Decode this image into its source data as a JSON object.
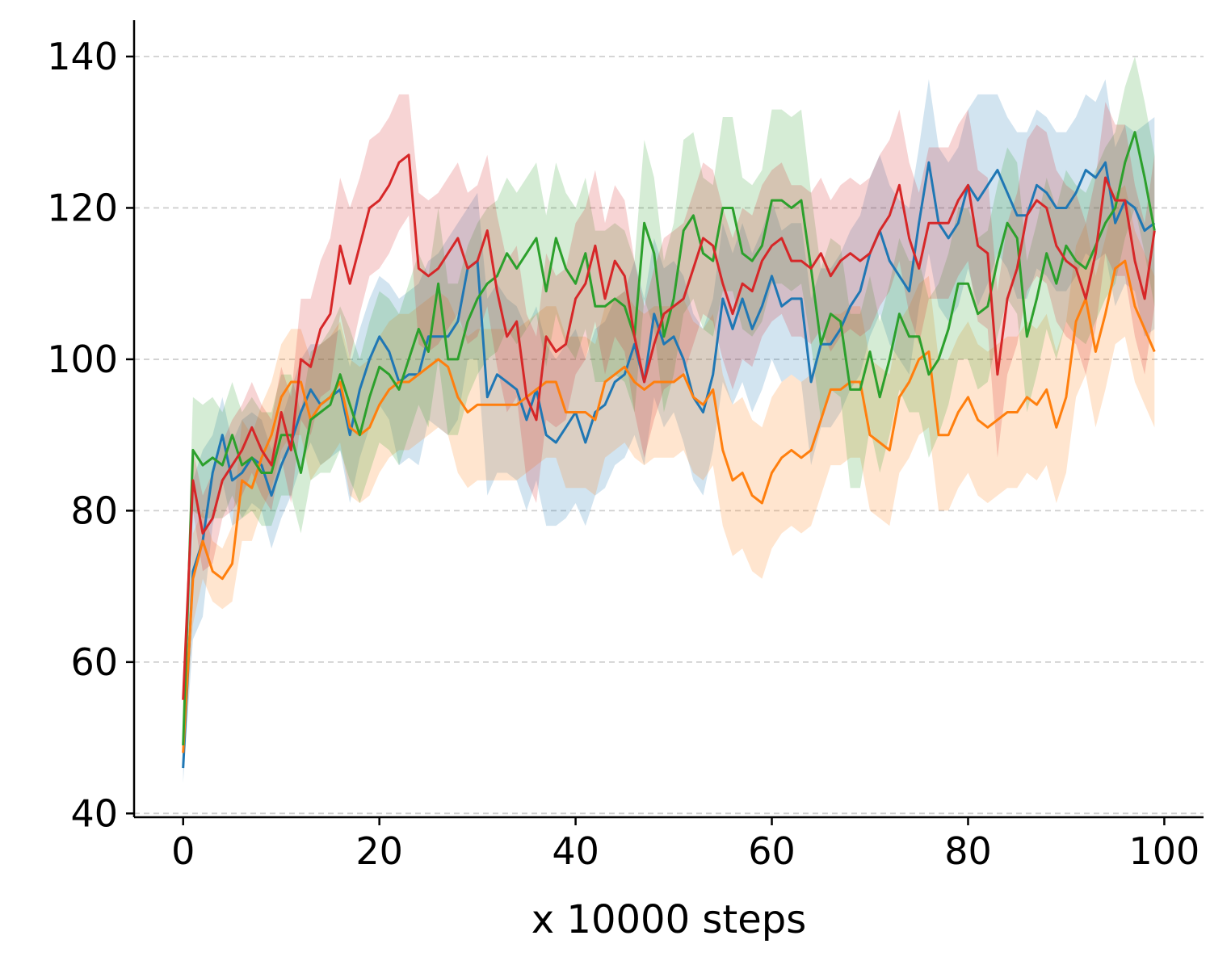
{
  "chart_data": {
    "type": "line",
    "title": "",
    "xlabel": "x 10000 steps",
    "ylabel": "",
    "xlim": [
      -5,
      104
    ],
    "ylim": [
      39.5,
      144.8
    ],
    "xticks": [
      0,
      20,
      40,
      60,
      80,
      100
    ],
    "yticks": [
      40,
      60,
      80,
      100,
      120,
      140
    ],
    "grid": "horizontal dashed",
    "legend": "none",
    "band_opacity": 0.2,
    "series": [
      {
        "color": "#1f77b4",
        "values": [
          46,
          72,
          76,
          85,
          90,
          84,
          85,
          87,
          86,
          82,
          86,
          89,
          93,
          96,
          94,
          95,
          96,
          90,
          96,
          100,
          103,
          101,
          97,
          98,
          98,
          103,
          103,
          103,
          105,
          112,
          113,
          95,
          98,
          97,
          96,
          92,
          96,
          90,
          89,
          91,
          93,
          89,
          93,
          94,
          97,
          98,
          102,
          97,
          106,
          102,
          103,
          100,
          95,
          93,
          98,
          108,
          104,
          108,
          104,
          107,
          111,
          107,
          108,
          108,
          97,
          102,
          102,
          104,
          107,
          109,
          114,
          117,
          113,
          111,
          109,
          118,
          126,
          118,
          116,
          118,
          123,
          121,
          123,
          125,
          122,
          119,
          119,
          123,
          122,
          120,
          120,
          122,
          125,
          124,
          126,
          118,
          121,
          120,
          117,
          118
        ],
        "upper": [
          48,
          84,
          88,
          90,
          95,
          89,
          92,
          93,
          92,
          88,
          92,
          96,
          100,
          102,
          102,
          103,
          104,
          99,
          104,
          108,
          111,
          110,
          108,
          109,
          110,
          113,
          114,
          116,
          118,
          120,
          122,
          108,
          110,
          108,
          107,
          104,
          107,
          102,
          100,
          102,
          104,
          100,
          104,
          105,
          108,
          109,
          113,
          108,
          116,
          112,
          113,
          111,
          106,
          104,
          108,
          118,
          114,
          118,
          114,
          117,
          121,
          117,
          118,
          118,
          108,
          112,
          112,
          114,
          117,
          119,
          124,
          127,
          123,
          121,
          120,
          128,
          137,
          128,
          126,
          128,
          133,
          135,
          135,
          135,
          132,
          130,
          130,
          133,
          132,
          130,
          130,
          132,
          135,
          134,
          137,
          128,
          131,
          130,
          131,
          132
        ],
        "lower": [
          44,
          63,
          66,
          78,
          84,
          78,
          79,
          81,
          80,
          75,
          79,
          82,
          86,
          89,
          86,
          87,
          88,
          81,
          87,
          91,
          94,
          92,
          86,
          87,
          86,
          92,
          91,
          90,
          92,
          100,
          100,
          82,
          85,
          85,
          84,
          80,
          84,
          78,
          78,
          79,
          81,
          78,
          82,
          83,
          86,
          87,
          90,
          86,
          95,
          91,
          93,
          89,
          84,
          82,
          88,
          97,
          94,
          97,
          93,
          96,
          100,
          97,
          98,
          97,
          86,
          91,
          91,
          93,
          96,
          98,
          103,
          106,
          102,
          100,
          98,
          107,
          114,
          107,
          105,
          107,
          112,
          107,
          110,
          114,
          112,
          108,
          108,
          112,
          111,
          109,
          109,
          111,
          114,
          113,
          114,
          107,
          110,
          109,
          103,
          104
        ]
      },
      {
        "color": "#ff7f0e",
        "values": [
          48,
          71,
          76,
          72,
          71,
          73,
          84,
          83,
          87,
          90,
          95,
          97,
          97,
          92,
          94,
          95,
          97,
          91,
          90,
          91,
          94,
          96,
          97,
          97,
          98,
          99,
          100,
          99,
          95,
          93,
          94,
          94,
          94,
          94,
          94,
          95,
          96,
          97,
          97,
          93,
          93,
          93,
          92,
          97,
          98,
          99,
          97,
          96,
          97,
          97,
          97,
          98,
          95,
          94,
          96,
          88,
          84,
          85,
          82,
          81,
          85,
          87,
          88,
          87,
          88,
          92,
          96,
          96,
          97,
          97,
          90,
          89,
          88,
          95,
          97,
          100,
          101,
          90,
          90,
          93,
          95,
          92,
          91,
          92,
          93,
          93,
          95,
          94,
          96,
          91,
          95,
          105,
          108,
          101,
          106,
          112,
          113,
          107,
          104,
          101
        ],
        "upper": [
          50,
          77,
          80,
          76,
          75,
          78,
          92,
          90,
          94,
          97,
          102,
          104,
          104,
          100,
          102,
          103,
          105,
          100,
          99,
          100,
          103,
          105,
          106,
          106,
          107,
          108,
          109,
          108,
          105,
          103,
          104,
          104,
          104,
          104,
          104,
          105,
          106,
          107,
          107,
          103,
          103,
          103,
          102,
          107,
          108,
          109,
          107,
          106,
          107,
          107,
          107,
          108,
          105,
          104,
          106,
          98,
          94,
          95,
          92,
          91,
          95,
          97,
          98,
          97,
          98,
          102,
          106,
          106,
          107,
          107,
          100,
          99,
          98,
          105,
          107,
          110,
          111,
          100,
          100,
          103,
          105,
          102,
          101,
          102,
          103,
          103,
          105,
          104,
          106,
          101,
          105,
          115,
          118,
          111,
          116,
          122,
          123,
          117,
          114,
          111
        ],
        "lower": [
          46,
          65,
          71,
          68,
          67,
          68,
          76,
          76,
          80,
          83,
          88,
          90,
          90,
          84,
          86,
          87,
          89,
          82,
          81,
          82,
          85,
          87,
          88,
          88,
          89,
          90,
          91,
          90,
          85,
          83,
          84,
          84,
          84,
          84,
          84,
          85,
          86,
          87,
          87,
          83,
          83,
          83,
          82,
          87,
          88,
          89,
          87,
          86,
          87,
          87,
          87,
          88,
          85,
          84,
          86,
          78,
          74,
          75,
          72,
          71,
          75,
          77,
          78,
          77,
          78,
          82,
          86,
          86,
          87,
          87,
          80,
          79,
          78,
          85,
          87,
          90,
          91,
          80,
          80,
          83,
          85,
          82,
          81,
          82,
          83,
          83,
          85,
          84,
          86,
          81,
          85,
          95,
          98,
          91,
          96,
          102,
          103,
          97,
          94,
          91
        ]
      },
      {
        "color": "#2ca02c",
        "values": [
          49,
          88,
          86,
          87,
          86,
          90,
          86,
          87,
          85,
          85,
          90,
          90,
          85,
          92,
          93,
          94,
          98,
          94,
          90,
          95,
          99,
          98,
          96,
          100,
          104,
          101,
          110,
          100,
          100,
          105,
          108,
          110,
          111,
          114,
          112,
          114,
          116,
          109,
          116,
          112,
          110,
          114,
          107,
          107,
          108,
          107,
          103,
          118,
          114,
          103,
          108,
          117,
          119,
          114,
          113,
          120,
          120,
          114,
          113,
          115,
          121,
          121,
          120,
          121,
          112,
          102,
          106,
          105,
          96,
          96,
          101,
          95,
          100,
          106,
          103,
          103,
          98,
          100,
          104,
          110,
          110,
          106,
          107,
          113,
          118,
          116,
          103,
          108,
          114,
          110,
          115,
          113,
          112,
          115,
          118,
          120,
          126,
          130,
          124,
          117
        ],
        "upper": [
          51,
          95,
          94,
          95,
          93,
          97,
          93,
          95,
          93,
          93,
          98,
          98,
          93,
          101,
          102,
          104,
          107,
          104,
          100,
          105,
          109,
          108,
          106,
          110,
          114,
          111,
          120,
          110,
          110,
          115,
          118,
          120,
          121,
          124,
          122,
          124,
          126,
          119,
          126,
          122,
          120,
          124,
          117,
          117,
          118,
          117,
          113,
          129,
          124,
          113,
          118,
          129,
          130,
          124,
          123,
          132,
          132,
          124,
          123,
          125,
          133,
          133,
          132,
          133,
          122,
          112,
          116,
          115,
          106,
          106,
          111,
          105,
          110,
          116,
          113,
          113,
          108,
          110,
          114,
          120,
          120,
          116,
          117,
          123,
          128,
          126,
          113,
          118,
          124,
          120,
          125,
          123,
          122,
          125,
          128,
          130,
          136,
          140,
          134,
          127
        ],
        "lower": [
          47,
          80,
          79,
          79,
          79,
          82,
          79,
          80,
          78,
          78,
          82,
          82,
          77,
          84,
          85,
          85,
          88,
          84,
          81,
          85,
          89,
          88,
          86,
          90,
          94,
          91,
          100,
          90,
          90,
          95,
          98,
          100,
          101,
          104,
          102,
          104,
          106,
          99,
          106,
          102,
          100,
          104,
          97,
          97,
          98,
          97,
          93,
          108,
          104,
          93,
          98,
          106,
          108,
          104,
          103,
          109,
          109,
          104,
          103,
          105,
          110,
          110,
          109,
          110,
          102,
          92,
          96,
          95,
          83,
          83,
          91,
          85,
          90,
          96,
          93,
          93,
          87,
          90,
          94,
          100,
          100,
          96,
          97,
          103,
          108,
          106,
          93,
          98,
          104,
          100,
          105,
          103,
          102,
          105,
          108,
          110,
          116,
          120,
          114,
          107
        ]
      },
      {
        "color": "#d62728",
        "values": [
          55,
          84,
          77,
          79,
          84,
          86,
          88,
          91,
          88,
          86,
          93,
          88,
          100,
          99,
          104,
          106,
          115,
          110,
          115,
          120,
          121,
          123,
          126,
          127,
          112,
          111,
          112,
          114,
          116,
          112,
          113,
          117,
          109,
          103,
          105,
          95,
          92,
          103,
          101,
          102,
          108,
          110,
          115,
          108,
          113,
          111,
          103,
          97,
          102,
          106,
          107,
          108,
          112,
          116,
          115,
          110,
          106,
          110,
          109,
          113,
          115,
          116,
          113,
          113,
          112,
          114,
          111,
          113,
          114,
          113,
          114,
          117,
          119,
          123,
          116,
          112,
          118,
          118,
          118,
          121,
          123,
          115,
          114,
          98,
          108,
          112,
          119,
          121,
          120,
          115,
          113,
          112,
          108,
          114,
          124,
          121,
          121,
          113,
          108,
          117
        ],
        "upper": [
          57,
          88,
          82,
          85,
          89,
          92,
          94,
          97,
          94,
          92,
          99,
          95,
          108,
          108,
          113,
          116,
          124,
          120,
          124,
          129,
          130,
          132,
          135,
          135,
          122,
          121,
          122,
          124,
          126,
          122,
          123,
          127,
          119,
          113,
          115,
          106,
          103,
          114,
          111,
          112,
          118,
          120,
          125,
          118,
          123,
          121,
          113,
          107,
          112,
          116,
          117,
          118,
          122,
          126,
          125,
          120,
          116,
          120,
          119,
          123,
          125,
          126,
          123,
          123,
          122,
          124,
          121,
          123,
          124,
          123,
          124,
          127,
          129,
          133,
          126,
          122,
          128,
          128,
          128,
          131,
          133,
          125,
          124,
          109,
          118,
          122,
          129,
          131,
          130,
          125,
          123,
          122,
          118,
          124,
          134,
          131,
          131,
          123,
          118,
          127
        ],
        "lower": [
          53,
          80,
          72,
          73,
          79,
          80,
          82,
          85,
          82,
          80,
          87,
          81,
          92,
          90,
          95,
          96,
          106,
          100,
          106,
          111,
          112,
          114,
          117,
          119,
          102,
          101,
          102,
          104,
          106,
          102,
          103,
          107,
          99,
          93,
          95,
          84,
          81,
          92,
          91,
          92,
          98,
          100,
          105,
          98,
          103,
          101,
          93,
          87,
          92,
          96,
          97,
          98,
          102,
          106,
          105,
          100,
          96,
          100,
          99,
          103,
          105,
          106,
          103,
          103,
          102,
          104,
          101,
          103,
          104,
          103,
          104,
          107,
          109,
          113,
          106,
          102,
          108,
          108,
          108,
          111,
          113,
          105,
          104,
          87,
          98,
          102,
          109,
          111,
          110,
          105,
          103,
          102,
          98,
          104,
          114,
          111,
          111,
          103,
          98,
          107
        ]
      }
    ]
  }
}
